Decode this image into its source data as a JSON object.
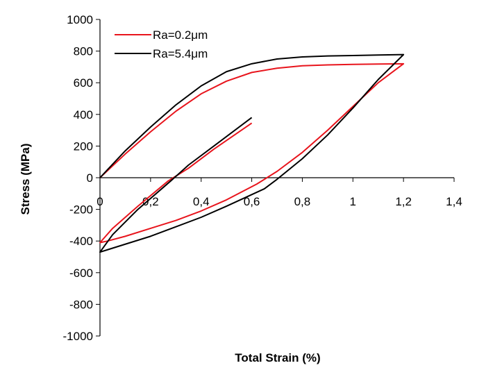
{
  "chart_data": {
    "type": "line",
    "xlabel": "Total Strain (%)",
    "ylabel": "Stress (MPa)",
    "xlim": [
      0,
      1.4
    ],
    "ylim": [
      -1000,
      1000
    ],
    "x_ticks": [
      "0",
      "0,2",
      "0,4",
      "0,6",
      "0,8",
      "1",
      "1,2",
      "1,4"
    ],
    "y_ticks": [
      "1000",
      "800",
      "600",
      "400",
      "200",
      "0",
      "-200",
      "-400",
      "-600",
      "-800",
      "-1000"
    ],
    "grid": false,
    "legend_position": "top-left",
    "series": [
      {
        "name": "Ra=0.2μm",
        "color": "#e8141c",
        "points": [
          [
            0,
            0
          ],
          [
            0.1,
            150
          ],
          [
            0.2,
            290
          ],
          [
            0.3,
            420
          ],
          [
            0.4,
            530
          ],
          [
            0.5,
            610
          ],
          [
            0.6,
            665
          ],
          [
            0.7,
            692
          ],
          [
            0.8,
            707
          ],
          [
            0.9,
            713
          ],
          [
            1.0,
            716
          ],
          [
            1.1,
            718
          ],
          [
            1.2,
            720
          ],
          [
            1.1,
            600
          ],
          [
            1.0,
            450
          ],
          [
            0.9,
            300
          ],
          [
            0.8,
            160
          ],
          [
            0.7,
            40
          ],
          [
            0.62,
            -40
          ],
          [
            0.5,
            -140
          ],
          [
            0.4,
            -210
          ],
          [
            0.3,
            -270
          ],
          [
            0.2,
            -320
          ],
          [
            0.1,
            -370
          ],
          [
            0.03,
            -400
          ],
          [
            0,
            -410
          ],
          [
            0.05,
            -320
          ],
          [
            0.15,
            -180
          ],
          [
            0.27,
            -20
          ],
          [
            0.35,
            60
          ],
          [
            0.45,
            180
          ],
          [
            0.6,
            345
          ]
        ]
      },
      {
        "name": "Ra=5.4μm",
        "color": "#000000",
        "points": [
          [
            0,
            0
          ],
          [
            0.1,
            170
          ],
          [
            0.2,
            320
          ],
          [
            0.3,
            460
          ],
          [
            0.4,
            580
          ],
          [
            0.5,
            670
          ],
          [
            0.6,
            720
          ],
          [
            0.7,
            750
          ],
          [
            0.8,
            763
          ],
          [
            0.9,
            769
          ],
          [
            1.0,
            772
          ],
          [
            1.1,
            775
          ],
          [
            1.2,
            778
          ],
          [
            1.1,
            620
          ],
          [
            1.0,
            440
          ],
          [
            0.9,
            270
          ],
          [
            0.8,
            120
          ],
          [
            0.7,
            -10
          ],
          [
            0.65,
            -70
          ],
          [
            0.5,
            -180
          ],
          [
            0.4,
            -250
          ],
          [
            0.3,
            -310
          ],
          [
            0.2,
            -370
          ],
          [
            0.1,
            -420
          ],
          [
            0.03,
            -455
          ],
          [
            0,
            -470
          ],
          [
            0.05,
            -360
          ],
          [
            0.15,
            -200
          ],
          [
            0.28,
            -20
          ],
          [
            0.35,
            80
          ],
          [
            0.45,
            200
          ],
          [
            0.6,
            380
          ]
        ]
      }
    ]
  }
}
